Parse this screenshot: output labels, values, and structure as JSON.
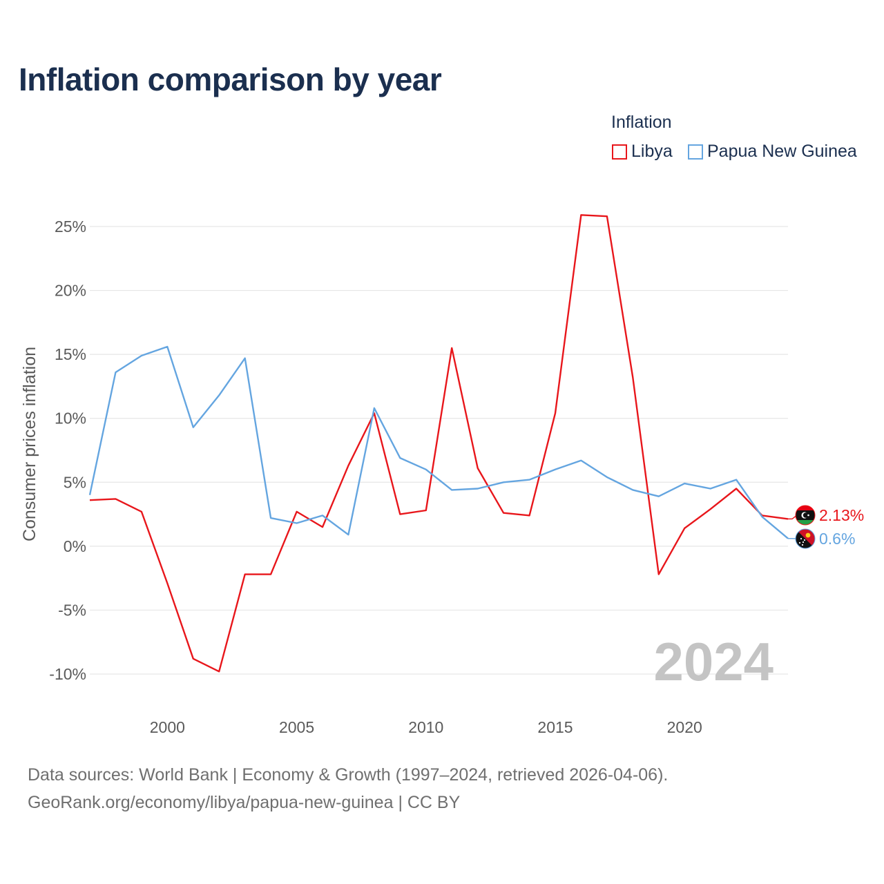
{
  "title": "Inflation comparison by year",
  "legend": {
    "title": "Inflation",
    "items": [
      {
        "label": "Libya",
        "color": "#e8161b"
      },
      {
        "label": "Papua New Guinea",
        "color": "#64a5e0"
      }
    ]
  },
  "chart_data": {
    "type": "line",
    "title": "Inflation comparison by year",
    "xlabel": "",
    "ylabel": "Consumer prices inflation",
    "xlim": [
      1997,
      2024
    ],
    "ylim": [
      -10,
      25
    ],
    "xticks": [
      2000,
      2005,
      2010,
      2015,
      2020
    ],
    "xtick_labels": [
      "2000",
      "2005",
      "2010",
      "2015",
      "2020"
    ],
    "yticks": [
      25,
      20,
      15,
      10,
      5,
      0,
      -5,
      -10
    ],
    "ytick_labels": [
      "25%",
      "20%",
      "15%",
      "10%",
      "5%",
      "0%",
      "-5%",
      "-10%"
    ],
    "grid": true,
    "x": [
      1997,
      1998,
      1999,
      2000,
      2001,
      2002,
      2003,
      2004,
      2005,
      2006,
      2007,
      2008,
      2009,
      2010,
      2011,
      2012,
      2013,
      2014,
      2015,
      2016,
      2017,
      2018,
      2019,
      2020,
      2021,
      2022,
      2023,
      2024
    ],
    "series": [
      {
        "name": "Libya",
        "color": "#e8161b",
        "values": [
          3.6,
          3.7,
          2.7,
          -2.9,
          -8.8,
          -9.8,
          -2.2,
          -2.2,
          2.7,
          1.5,
          6.3,
          10.4,
          2.5,
          2.8,
          15.5,
          6.1,
          2.6,
          2.4,
          10.4,
          25.9,
          25.8,
          13.2,
          -2.2,
          1.4,
          2.9,
          4.5,
          2.4,
          2.13
        ]
      },
      {
        "name": "Papua New Guinea",
        "color": "#64a5e0",
        "values": [
          4.0,
          13.6,
          14.9,
          15.6,
          9.3,
          11.8,
          14.7,
          2.2,
          1.8,
          2.4,
          0.9,
          10.8,
          6.9,
          6.0,
          4.4,
          4.5,
          5.0,
          5.2,
          6.0,
          6.7,
          5.4,
          4.4,
          3.9,
          4.9,
          4.5,
          5.2,
          2.3,
          0.6
        ]
      }
    ],
    "end_labels": [
      {
        "series": "Libya",
        "text": "2.13%",
        "color": "#e8161b",
        "flag": "libya-flag-icon"
      },
      {
        "series": "Papua New Guinea",
        "text": "0.6%",
        "color": "#64a5e0",
        "flag": "png-flag-icon"
      }
    ],
    "annotation": "2024"
  },
  "footer": {
    "line1": "Data sources: World Bank | Economy & Growth (1997–2024, retrieved 2026-04-06).",
    "line2": "GeoRank.org/economy/libya/papua-new-guinea | CC BY"
  }
}
